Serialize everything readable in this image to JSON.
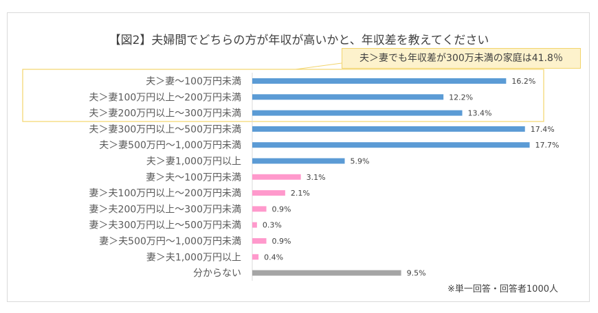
{
  "chart_data": {
    "type": "bar",
    "orientation": "horizontal",
    "title": "【図2】夫婦間でどちらの方が年収が高いかと、年収差を教えてください",
    "categories": [
      "夫＞妻〜100万円未満",
      "夫＞妻100万円以上〜200万円未満",
      "夫＞妻200万円以上〜300万円未満",
      "夫＞妻300万円以上〜500万円未満",
      "夫＞妻500万円〜1,000万円未満",
      "夫＞妻1,000万円以上",
      "妻＞夫〜100万円未満",
      "妻＞夫100万円以上〜200万円未満",
      "妻＞夫200万円以上〜300万円未満",
      "妻＞夫300万円以上〜500万円未満",
      "妻＞夫500万円〜1,000万円未満",
      "妻＞夫1,000万円以上",
      "分からない"
    ],
    "values": [
      16.2,
      12.2,
      13.4,
      17.4,
      17.7,
      5.9,
      3.1,
      2.1,
      0.9,
      0.3,
      0.9,
      0.4,
      9.5
    ],
    "value_labels": [
      "16.2%",
      "12.2%",
      "13.4%",
      "17.4%",
      "17.7%",
      "5.9%",
      "3.1%",
      "2.1%",
      "0.9%",
      "0.3%",
      "0.9%",
      "0.4%",
      "9.5%"
    ],
    "unit": "%",
    "xlim": [
      0,
      20
    ],
    "grid": false,
    "colors": {
      "husband_higher": "#5b9bd5",
      "wife_higher": "#ff99cc",
      "unknown": "#a5a5a5"
    },
    "bar_color_groups": [
      "husband_higher",
      "husband_higher",
      "husband_higher",
      "husband_higher",
      "husband_higher",
      "husband_higher",
      "wife_higher",
      "wife_higher",
      "wife_higher",
      "wife_higher",
      "wife_higher",
      "wife_higher",
      "unknown"
    ],
    "annotation": "夫＞妻でも年収差が300万未満の家庭は41.8％",
    "highlight_color": "#f2d46b",
    "footnote": "※単一回答・回答者1000人"
  }
}
